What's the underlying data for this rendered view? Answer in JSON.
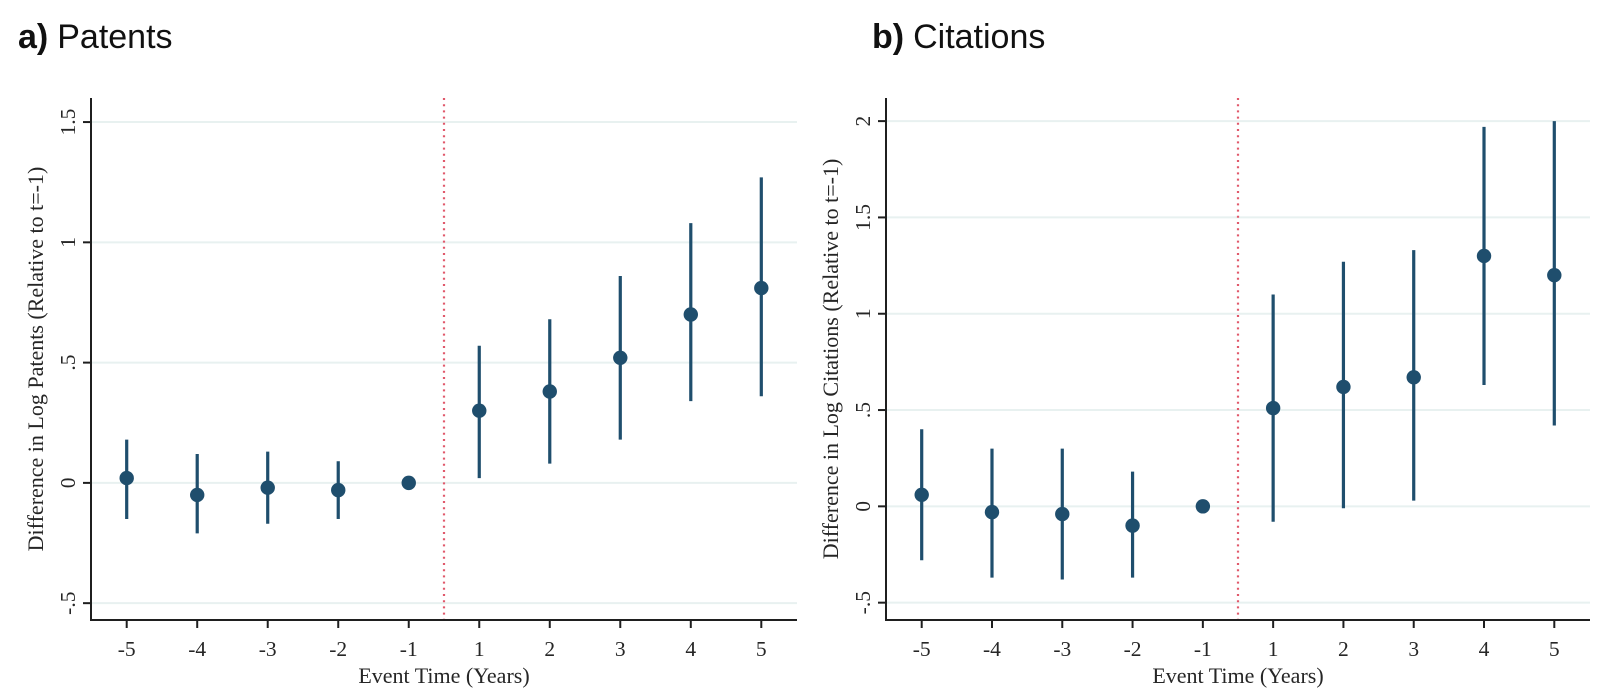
{
  "figure": {
    "background": "#ffffff",
    "panels": [
      {
        "title_prefix": "a)",
        "title_text": "Patents"
      },
      {
        "title_prefix": "b)",
        "title_text": "Citations"
      }
    ]
  },
  "colors": {
    "marker": "#1f4e6d",
    "ci_bar": "#1f4e6d",
    "vline": "#e0596b",
    "gridline": "#e8f1f0",
    "axis": "#1f1f1f",
    "label_text": "#262626",
    "title_text": "#111111"
  },
  "chart_data": [
    {
      "type": "scatter",
      "subtype": "event-study-errorbars",
      "title": "a) Patents",
      "xlabel": "Event Time (Years)",
      "ylabel": "Difference in Log Patents (Relative to t=-1)",
      "x_labels": [
        "-5",
        "-4",
        "-3",
        "-2",
        "-1",
        "1",
        "2",
        "3",
        "4",
        "5"
      ],
      "estimates": [
        0.02,
        -0.05,
        -0.02,
        -0.03,
        0,
        0.3,
        0.38,
        0.52,
        0.7,
        0.81
      ],
      "ci_low": [
        -0.15,
        -0.21,
        -0.17,
        -0.15,
        0,
        0.02,
        0.08,
        0.18,
        0.34,
        0.36
      ],
      "ci_high": [
        0.18,
        0.12,
        0.13,
        0.09,
        0,
        0.57,
        0.68,
        0.86,
        1.08,
        1.27
      ],
      "reference_period": "-1",
      "yticks": [
        {
          "label": "-.5",
          "value": -0.5
        },
        {
          "label": "0",
          "value": 0
        },
        {
          "label": ".5",
          "value": 0.5
        },
        {
          "label": "1",
          "value": 1
        },
        {
          "label": "1.5",
          "value": 1.5
        }
      ],
      "ylim": [
        -0.57,
        1.6
      ],
      "vline_between": [
        "-1",
        "1"
      ],
      "grid": true,
      "legend": "none"
    },
    {
      "type": "scatter",
      "subtype": "event-study-errorbars",
      "title": "b) Citations",
      "xlabel": "Event Time (Years)",
      "ylabel": "Difference in Log Citations (Relative to t=-1)",
      "x_labels": [
        "-5",
        "-4",
        "-3",
        "-2",
        "-1",
        "1",
        "2",
        "3",
        "4",
        "5"
      ],
      "estimates": [
        0.06,
        -0.03,
        -0.04,
        -0.1,
        0,
        0.51,
        0.62,
        0.67,
        1.3,
        1.2
      ],
      "ci_low": [
        -0.28,
        -0.37,
        -0.38,
        -0.37,
        0,
        -0.08,
        -0.01,
        0.03,
        0.63,
        0.42
      ],
      "ci_high": [
        0.4,
        0.3,
        0.3,
        0.18,
        0,
        1.1,
        1.27,
        1.33,
        1.97,
        2.0
      ],
      "reference_period": "-1",
      "yticks": [
        {
          "label": "-.5",
          "value": -0.5
        },
        {
          "label": "0",
          "value": 0
        },
        {
          "label": ".5",
          "value": 0.5
        },
        {
          "label": "1",
          "value": 1
        },
        {
          "label": "1.5",
          "value": 1.5
        },
        {
          "label": "2",
          "value": 2
        }
      ],
      "ylim": [
        -0.59,
        2.12
      ],
      "vline_between": [
        "-1",
        "1"
      ],
      "grid": true,
      "legend": "none"
    }
  ]
}
